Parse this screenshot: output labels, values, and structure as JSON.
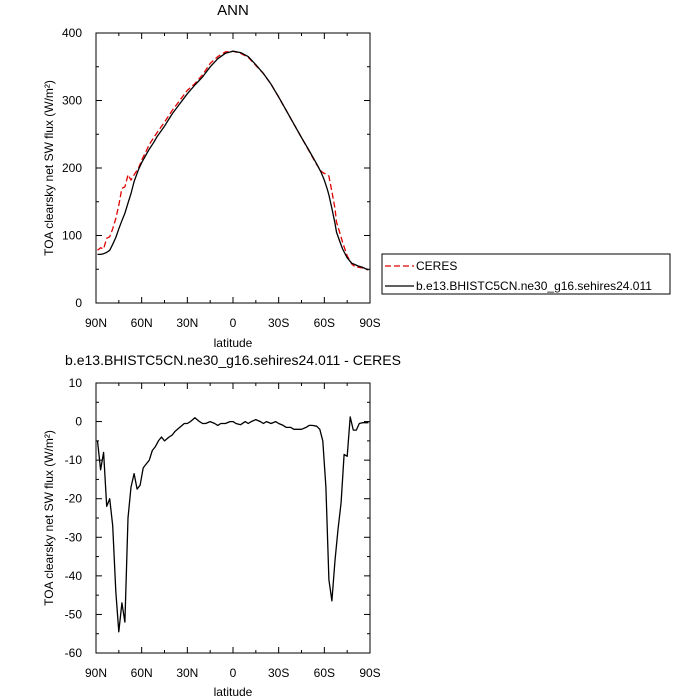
{
  "chart_data": [
    {
      "type": "line",
      "title": "ANN",
      "xlabel": "latitude",
      "ylabel": "TOA clearsky net SW flux (W/m²)",
      "xlim": [
        90,
        -90
      ],
      "ylim": [
        0,
        400
      ],
      "x_ticks": [
        90,
        60,
        30,
        0,
        -30,
        -60,
        -90
      ],
      "x_tick_labels": [
        "90N",
        "60N",
        "30N",
        "0",
        "30S",
        "60S",
        "90S"
      ],
      "y_ticks": [
        0,
        100,
        200,
        300,
        400
      ],
      "y_tick_labels": [
        "0",
        "100",
        "200",
        "300",
        "400"
      ],
      "legend_position": "right",
      "series": [
        {
          "name": "CERES",
          "color": "#e00000",
          "dash": "dashed",
          "x": [
            89,
            87,
            85,
            83,
            81,
            79,
            77,
            75,
            73,
            71,
            69,
            67,
            65,
            62,
            60,
            57,
            55,
            52,
            50,
            45,
            40,
            35,
            30,
            25,
            20,
            15,
            10,
            5,
            0,
            -5,
            -10,
            -15,
            -20,
            -25,
            -30,
            -35,
            -40,
            -45,
            -50,
            -55,
            -58,
            -60,
            -62,
            -63,
            -65,
            -67,
            -68,
            -70,
            -72,
            -75,
            -78,
            -80,
            -82,
            -85,
            -87,
            -89
          ],
          "y": [
            78,
            82,
            80,
            96,
            98,
            110,
            125,
            145,
            170,
            172,
            190,
            182,
            190,
            200,
            212,
            225,
            235,
            245,
            252,
            268,
            285,
            300,
            315,
            325,
            338,
            355,
            365,
            372,
            373,
            370,
            364,
            352,
            340,
            324,
            305,
            285,
            265,
            245,
            225,
            205,
            195,
            192,
            190,
            188,
            165,
            140,
            120,
            105,
            90,
            70,
            58,
            54,
            53,
            52,
            50,
            49
          ]
        },
        {
          "name": "b.e13.BHISTC5CN.ne30_g16.sehires24.011",
          "color": "#000000",
          "dash": "solid",
          "x": [
            89,
            87,
            85,
            83,
            81,
            79,
            77,
            75,
            73,
            71,
            69,
            67,
            65,
            62,
            60,
            57,
            55,
            52,
            50,
            45,
            40,
            35,
            30,
            25,
            20,
            15,
            10,
            5,
            0,
            -5,
            -10,
            -15,
            -20,
            -25,
            -30,
            -35,
            -40,
            -45,
            -50,
            -55,
            -58,
            -60,
            -62,
            -63,
            -65,
            -67,
            -68,
            -70,
            -72,
            -75,
            -78,
            -80,
            -82,
            -85,
            -87,
            -89
          ],
          "y": [
            72,
            72,
            73,
            75,
            78,
            87,
            97,
            110,
            122,
            133,
            148,
            162,
            180,
            198,
            208,
            220,
            228,
            238,
            246,
            262,
            280,
            295,
            310,
            323,
            335,
            350,
            362,
            370,
            373,
            371,
            365,
            353,
            340,
            324,
            305,
            285,
            265,
            245,
            226,
            206,
            193,
            182,
            168,
            160,
            140,
            118,
            105,
            92,
            80,
            67,
            59,
            57,
            55,
            53,
            51,
            49
          ]
        }
      ]
    },
    {
      "type": "line",
      "title": "b.e13.BHISTC5CN.ne30_g16.sehires24.011 - CERES",
      "xlabel": "latitude",
      "ylabel": "TOA clearsky net SW flux (W/m²)",
      "xlim": [
        90,
        -90
      ],
      "ylim": [
        -60,
        10
      ],
      "x_ticks": [
        90,
        60,
        30,
        0,
        -30,
        -60,
        -90
      ],
      "x_tick_labels": [
        "90N",
        "60N",
        "30N",
        "0",
        "30S",
        "60S",
        "90S"
      ],
      "y_ticks": [
        -60,
        -50,
        -40,
        -30,
        -20,
        -10,
        0,
        10
      ],
      "y_tick_labels": [
        "-60",
        "-50",
        "-40",
        "-30",
        "-20",
        "-10",
        "0",
        "10"
      ],
      "series": [
        {
          "name": "",
          "color": "#000000",
          "dash": "solid",
          "x": [
            89,
            87,
            85,
            83,
            81,
            79,
            77,
            75,
            73,
            71,
            69,
            67,
            65,
            63,
            61,
            59,
            57,
            55,
            53,
            51,
            49,
            47,
            45,
            42,
            40,
            38,
            35,
            32,
            30,
            28,
            25,
            22,
            20,
            18,
            15,
            12,
            10,
            8,
            5,
            2,
            0,
            -2,
            -5,
            -8,
            -10,
            -12,
            -15,
            -18,
            -20,
            -22,
            -25,
            -28,
            -30,
            -33,
            -35,
            -38,
            -40,
            -42,
            -45,
            -48,
            -50,
            -52,
            -55,
            -57,
            -59,
            -61,
            -63,
            -65,
            -67,
            -69,
            -71,
            -73,
            -75,
            -77,
            -79,
            -81,
            -83,
            -85,
            -87,
            -89
          ],
          "y": [
            -5,
            -12.5,
            -8,
            -22,
            -20,
            -27,
            -44,
            -54.5,
            -47,
            -52,
            -25,
            -17,
            -13.5,
            -17.5,
            -16.5,
            -12,
            -11,
            -10,
            -7.5,
            -6.5,
            -5,
            -4,
            -5,
            -4,
            -3.5,
            -2.5,
            -1.5,
            -0.5,
            -0.5,
            0,
            1,
            0,
            -0.5,
            -0.5,
            0,
            -0.5,
            -1,
            -0.5,
            -0.5,
            0,
            0,
            -0.5,
            -0.8,
            0,
            -0.5,
            0,
            0.5,
            0,
            -0.5,
            0,
            -0.5,
            0,
            -0.5,
            -1,
            -1.5,
            -1.5,
            -2,
            -2,
            -2,
            -1.5,
            -1,
            -1,
            -1.2,
            -2,
            -5,
            -17,
            -41,
            -46.5,
            -36,
            -28,
            -21,
            -8.5,
            -9,
            1.2,
            -2.2,
            -2.2,
            -0.5,
            -0.3,
            -0.3,
            -0.3
          ]
        }
      ]
    }
  ]
}
